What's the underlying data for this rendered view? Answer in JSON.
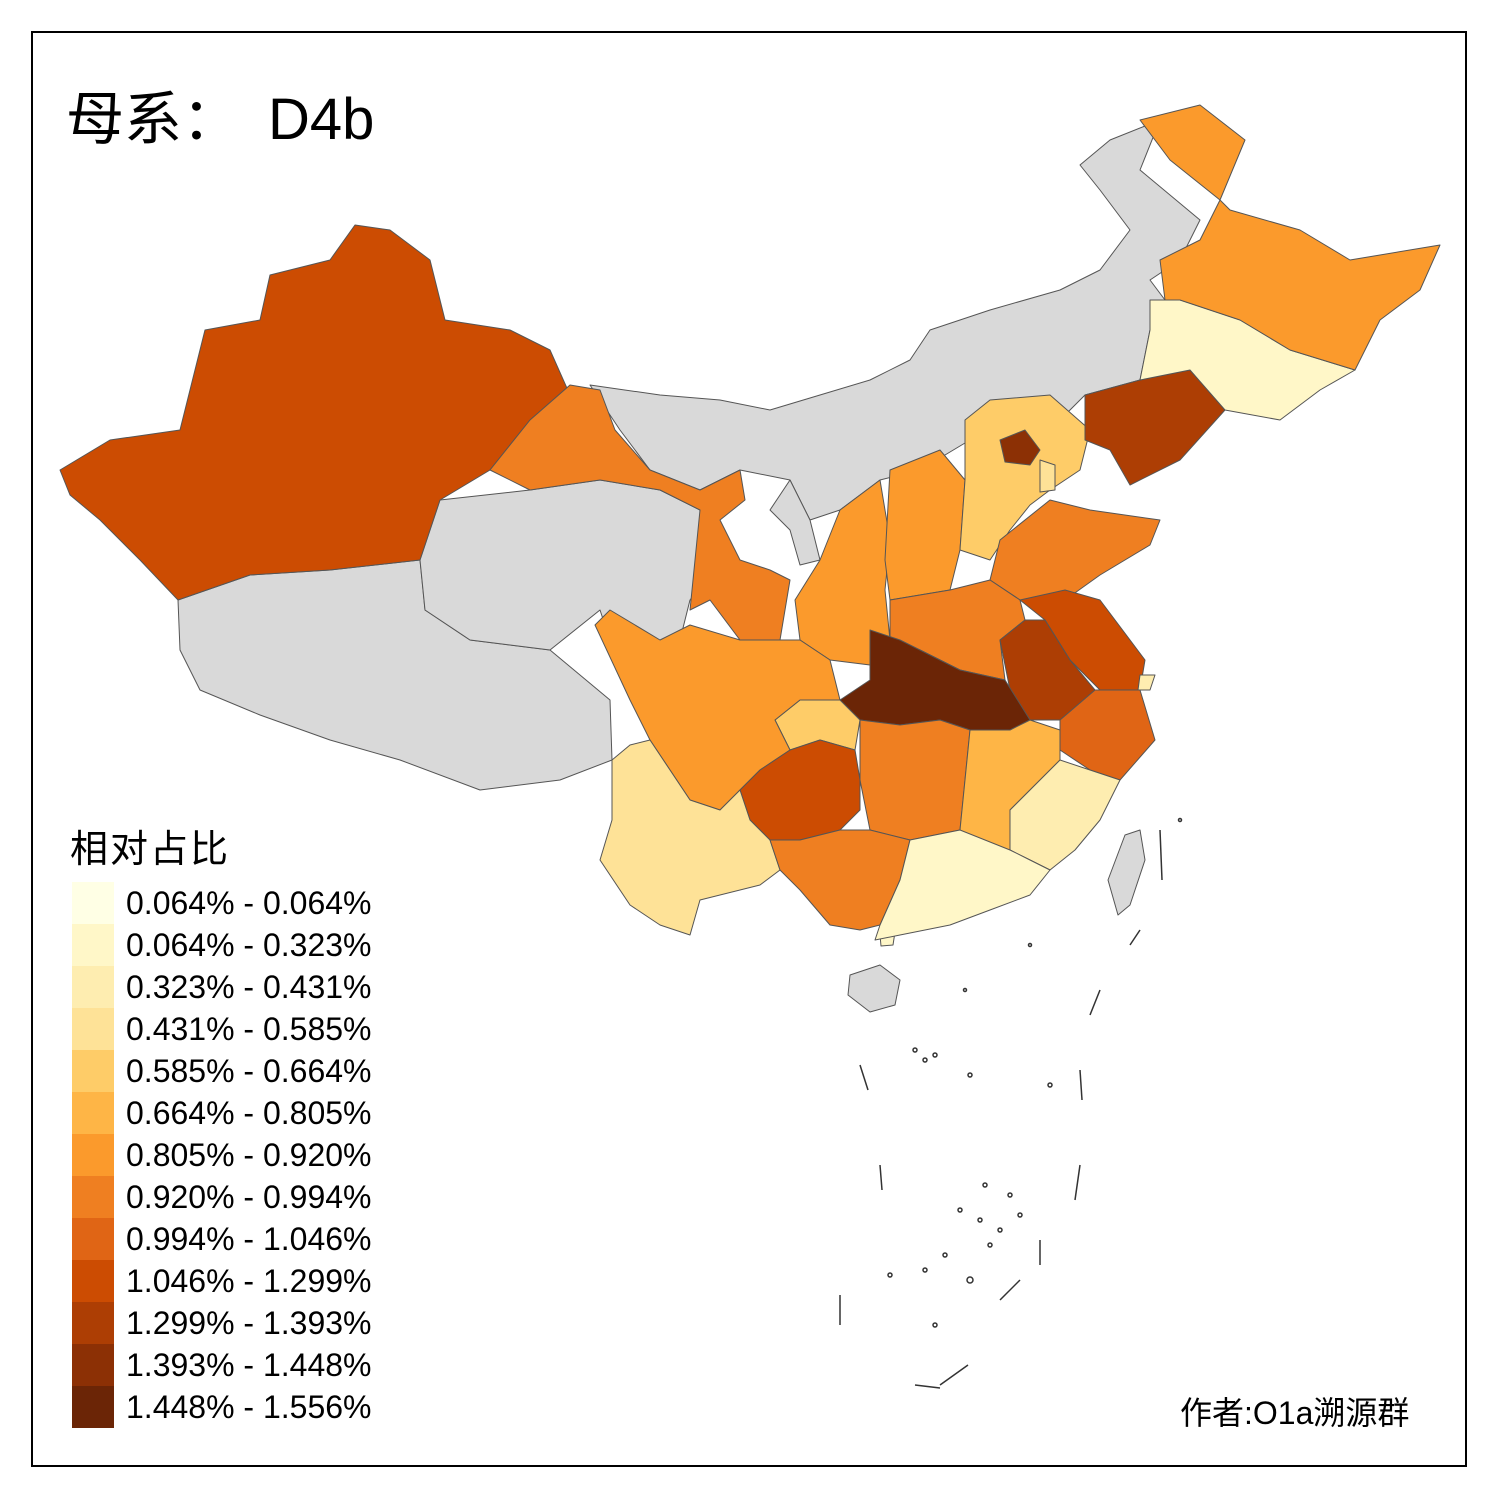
{
  "title": {
    "label": "母系：",
    "haplogroup": "D4b"
  },
  "legend": {
    "title": "相对占比",
    "classes": [
      {
        "label": "0.064% - 0.064%",
        "color": "#FFFFE5"
      },
      {
        "label": "0.064% - 0.323%",
        "color": "#FFF7C8"
      },
      {
        "label": "0.323% - 0.431%",
        "color": "#FEEDB0"
      },
      {
        "label": "0.431% - 0.585%",
        "color": "#FEE297"
      },
      {
        "label": "0.585% - 0.664%",
        "color": "#FECC68"
      },
      {
        "label": "0.664% - 0.805%",
        "color": "#FEB546"
      },
      {
        "label": "0.805% - 0.920%",
        "color": "#FB9A2C"
      },
      {
        "label": "0.920% - 0.994%",
        "color": "#EF7F21"
      },
      {
        "label": "0.994% - 1.046%",
        "color": "#E06515"
      },
      {
        "label": "1.046% - 1.299%",
        "color": "#CC4C02"
      },
      {
        "label": "1.299% - 1.393%",
        "color": "#AD3E04"
      },
      {
        "label": "1.393% - 1.448%",
        "color": "#8C3005"
      },
      {
        "label": "1.448% - 1.556%",
        "color": "#6B2506"
      }
    ]
  },
  "no_data_color": "#D9D9D9",
  "author": "作者:O1a溯源群"
}
